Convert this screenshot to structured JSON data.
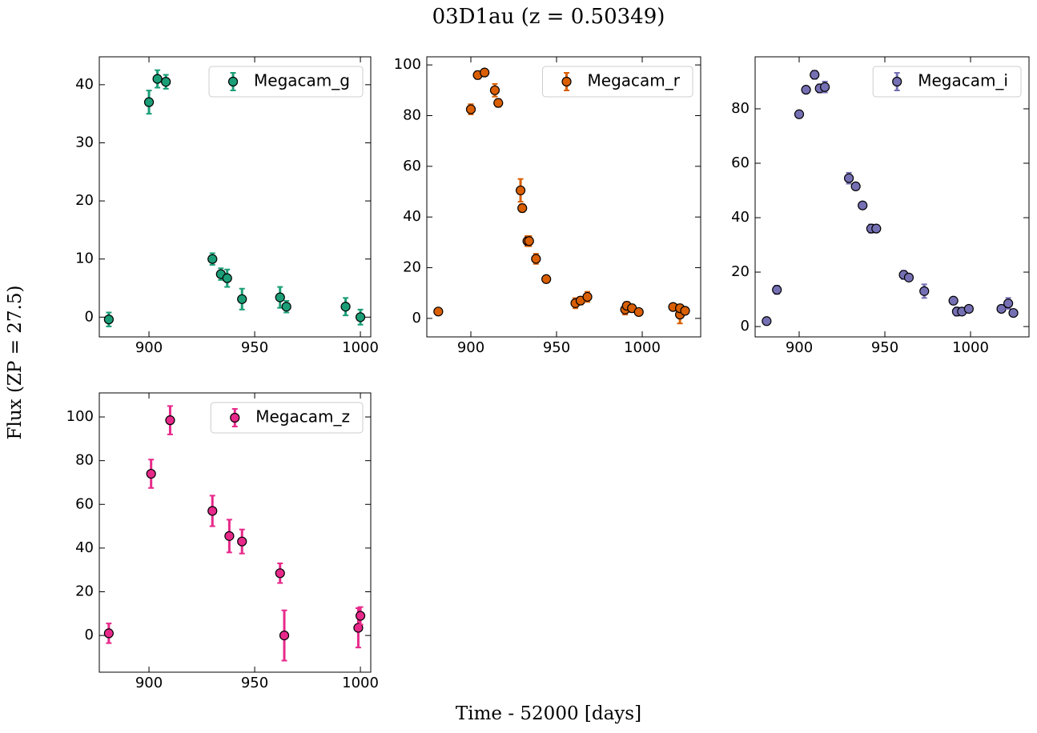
{
  "title": "03D1au (z = 0.50349)",
  "xlabel": "Time - 52000 [days]",
  "ylabel": "Flux (ZP = 27.5)",
  "chart_data": [
    {
      "type": "scatter",
      "legend": "upper right",
      "x": [
        881,
        900,
        904,
        908,
        930,
        934,
        937,
        944,
        962,
        965,
        993,
        1000
      ],
      "series": [
        {
          "name": "Megacam_g",
          "color": "#1b9e77",
          "values": [
            -0.4,
            37,
            41,
            40.5,
            10,
            7.4,
            6.7,
            3.1,
            3.4,
            1.8,
            1.8,
            0
          ],
          "errors": [
            1.2,
            2,
            1.5,
            1.2,
            1,
            1,
            1.5,
            1.8,
            1.8,
            1,
            1.5,
            1.3
          ]
        }
      ],
      "xlim": [
        876.5,
        1004.9
      ],
      "ylim": [
        -3.4,
        44.8
      ],
      "xticks": [
        900,
        950,
        1000
      ],
      "yticks": [
        0,
        10,
        20,
        30,
        40
      ]
    },
    {
      "type": "scatter",
      "legend": "upper right",
      "x": [
        881,
        900,
        904,
        908,
        914,
        916,
        929,
        930,
        933,
        934,
        938,
        944,
        961,
        964,
        968,
        990,
        991,
        994,
        998,
        1018,
        1022,
        1022,
        1025
      ],
      "series": [
        {
          "name": "Megacam_r",
          "color": "#d95f02",
          "values": [
            2.7,
            82.5,
            96,
            97,
            90,
            85,
            50.5,
            43.5,
            30.5,
            30.5,
            23.5,
            15.5,
            6,
            7,
            8.5,
            3.5,
            5,
            4,
            2.5,
            4.5,
            1.5,
            4,
            3
          ],
          "errors": [
            0.5,
            2,
            1.5,
            1,
            2.5,
            1.5,
            4.5,
            1.5,
            2,
            2,
            2,
            1,
            2,
            1.5,
            2,
            2,
            1.5,
            1.5,
            1,
            1,
            3.5,
            1.5,
            1
          ]
        }
      ],
      "xlim": [
        874.3,
        1034.1
      ],
      "ylim": [
        -7.3,
        103.2
      ],
      "xticks": [
        900,
        950,
        1000
      ],
      "yticks": [
        0,
        20,
        40,
        60,
        80,
        100
      ]
    },
    {
      "type": "scatter",
      "legend": "upper right",
      "x": [
        881,
        887,
        900,
        904,
        909,
        912,
        915,
        929,
        933,
        937,
        942,
        945,
        961,
        964,
        973,
        990,
        992,
        995,
        999,
        1018,
        1022,
        1025
      ],
      "series": [
        {
          "name": "Megacam_i",
          "color": "#7570b3",
          "values": [
            2,
            13.5,
            78,
            87,
            92.5,
            87.5,
            88,
            54.5,
            51.5,
            44.5,
            36,
            36,
            19,
            18,
            13,
            9.5,
            5.5,
            5.5,
            6.5,
            6.5,
            8.5,
            5
          ],
          "errors": [
            0.5,
            1.5,
            1,
            1,
            1.5,
            1.5,
            2,
            2,
            1,
            1,
            1.5,
            1,
            1.5,
            1,
            2.5,
            1,
            1.5,
            1,
            1,
            1,
            2,
            1
          ]
        }
      ],
      "xlim": [
        874.3,
        1034.1
      ],
      "ylim": [
        -3.8,
        99.1
      ],
      "xticks": [
        900,
        950,
        1000
      ],
      "yticks": [
        0,
        20,
        40,
        60,
        80
      ]
    },
    {
      "type": "scatter",
      "legend": "upper right",
      "x": [
        881,
        901,
        910,
        930,
        938,
        944,
        962,
        964,
        999,
        1000
      ],
      "series": [
        {
          "name": "Megacam_z",
          "color": "#e7298a",
          "values": [
            1,
            74,
            98.5,
            57,
            45.5,
            43,
            28.5,
            0,
            3.5,
            9
          ],
          "errors": [
            4.5,
            6.5,
            6.5,
            7,
            7.5,
            5.5,
            4.5,
            11.5,
            9,
            4
          ]
        }
      ],
      "xlim": [
        876.5,
        1004.9
      ],
      "ylim": [
        -16.8,
        111
      ],
      "xticks": [
        900,
        950,
        1000
      ],
      "yticks": [
        0,
        20,
        40,
        60,
        80,
        100
      ]
    }
  ]
}
